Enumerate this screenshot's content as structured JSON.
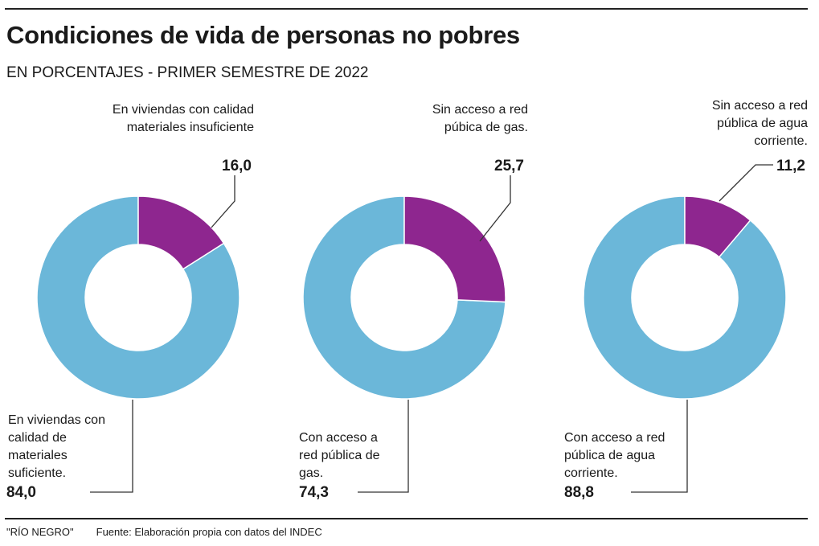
{
  "title": "Condiciones de vida de personas no pobres",
  "subtitle": "EN PORCENTAJES - PRIMER SEMESTRE DE 2022",
  "footer": {
    "brand": "\"RÍO NEGRO\"",
    "source": "Fuente: Elaboración propia con datos del INDEC"
  },
  "colors": {
    "primary": "#8E268F",
    "secondary": "#6BB7D9"
  },
  "chart_data": [
    {
      "type": "pie",
      "variant": "donut",
      "slices": [
        {
          "label": "En viviendas con calidad materiales insuficiente",
          "value": 16.0,
          "display": "16,0",
          "color": "#8E268F"
        },
        {
          "label": "En viviendas con calidad de materiales suficiente.",
          "value": 84.0,
          "display": "84,0",
          "color": "#6BB7D9"
        }
      ]
    },
    {
      "type": "pie",
      "variant": "donut",
      "slices": [
        {
          "label": "Sin acceso a red púbica de gas.",
          "value": 25.7,
          "display": "25,7",
          "color": "#8E268F"
        },
        {
          "label": "Con acceso a red pública de gas.",
          "value": 74.3,
          "display": "74,3",
          "color": "#6BB7D9"
        }
      ]
    },
    {
      "type": "pie",
      "variant": "donut",
      "slices": [
        {
          "label": "Sin acceso a red pública de agua corriente.",
          "value": 11.2,
          "display": "11,2",
          "color": "#8E268F"
        },
        {
          "label": "Con acceso a red pública de agua corriente.",
          "value": 88.8,
          "display": "88,8",
          "color": "#6BB7D9"
        }
      ]
    }
  ]
}
